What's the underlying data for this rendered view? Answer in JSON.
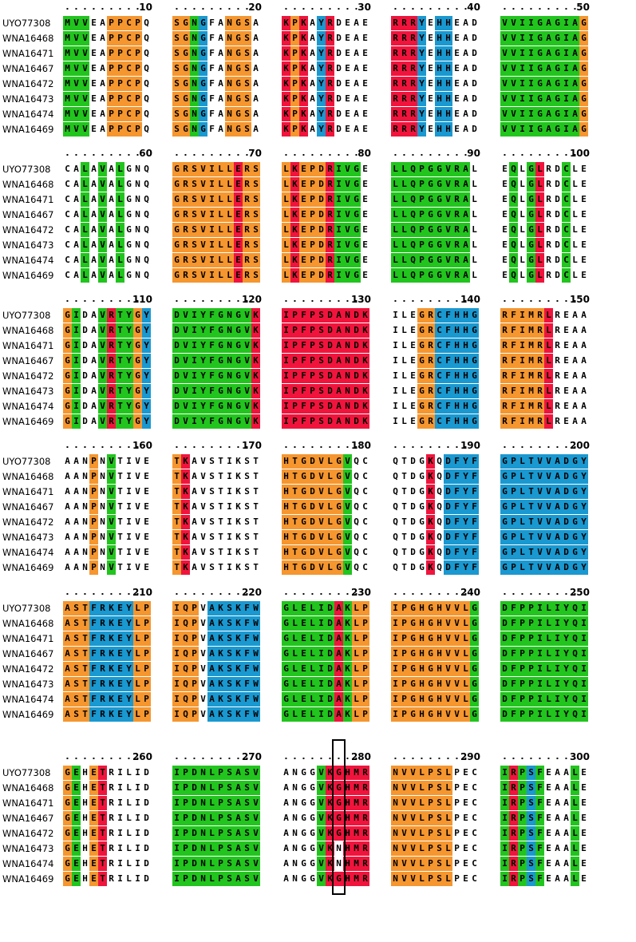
{
  "names": [
    "UYO77308",
    "WNA16468",
    "WNA16471",
    "WNA16467",
    "WNA16472",
    "WNA16473",
    "WNA16474",
    "WNA16469"
  ],
  "colors": {
    "green": "#22c41e",
    "orange": "#f5962f",
    "blue": "#1a98d0",
    "red": "#f0143c"
  },
  "blocks": [
    {
      "numbers": [
        "10",
        "20",
        "30",
        "40",
        "50"
      ],
      "seqs": [
        "MVVEAPPCPQSGNGFANGSAKPKAYRDEAERRRYEHHEADVVIIGAGIAG"
      ],
      "variants": [],
      "colors": "GGGWWOOOOWOOGBWWOOOWRORWBRWWWWRRRBWBBWWWGGGGGGGGGO"
    },
    {
      "numbers": [
        "60",
        "70",
        "80",
        "90",
        "100"
      ],
      "seqs": [
        "CALAVALGNQGRSVILLERSLKEPDRIVGELLQPGGVRALEQLGLRDCLE"
      ],
      "variants": [],
      "colors": "WWGWGWGWWWOOOOOOOROOOROOORGGGWGGGGGGGGGWWGWGRWWGWW"
    },
    {
      "numbers": [
        "110",
        "120",
        "130",
        "140",
        "150"
      ],
      "seqs": [
        "GIDAVRTYGYDVIYFGNGVKIPFPSDANDKILEGRCFHHGRFIMRLREAA"
      ],
      "variants": [],
      "colors": "OGWWGRGGOBGGGGGGGGGRRRRRRRRRRRWWWOOBBBBBOOOOORWWWW"
    },
    {
      "numbers": [
        "160",
        "170",
        "180",
        "190",
        "200"
      ],
      "seqs": [
        "AANPNVTIVETKAVSTIKSTHTGDVLGVQCQTDGKQDFYFGPLTVVADGY"
      ],
      "variants": [],
      "colors": "WWWOWGWWWWORWWWWWWWWOOOOOOOGWWWWWWRWBBBBBBBBBBBBBB"
    },
    {
      "numbers": [
        "210",
        "220",
        "230",
        "240",
        "250"
      ],
      "seqs": [
        "ASTFRKEYLPIQPVAKSKFWGLELIDAKLPIPGHGHVVLGDFPPILIYQI"
      ],
      "variants": [],
      "colors": "OOOBBBBBOOOOOWBBBBBBGGGGGGRGOOOOOOOOOOOGGGGGGGGGGG"
    },
    {
      "numbers": [
        "260",
        "270",
        "280",
        "290",
        "300"
      ],
      "seqs": [
        "GEHETRILIDIPDNLPSASVANGGVKGHMRNVVLPSLPECIRPSFEAALE"
      ],
      "variants": [
        {
          "row": 5,
          "pos": 26,
          "residue": "N"
        },
        {
          "row": 6,
          "pos": 26,
          "residue": "N"
        }
      ],
      "colors": "OGWORWWWWWGGGGGGGGGGWWWWGRRRRROOOOOOOWWWGRGBGWWWGW"
    }
  ],
  "highlight": {
    "block": 5,
    "pos": 26
  }
}
